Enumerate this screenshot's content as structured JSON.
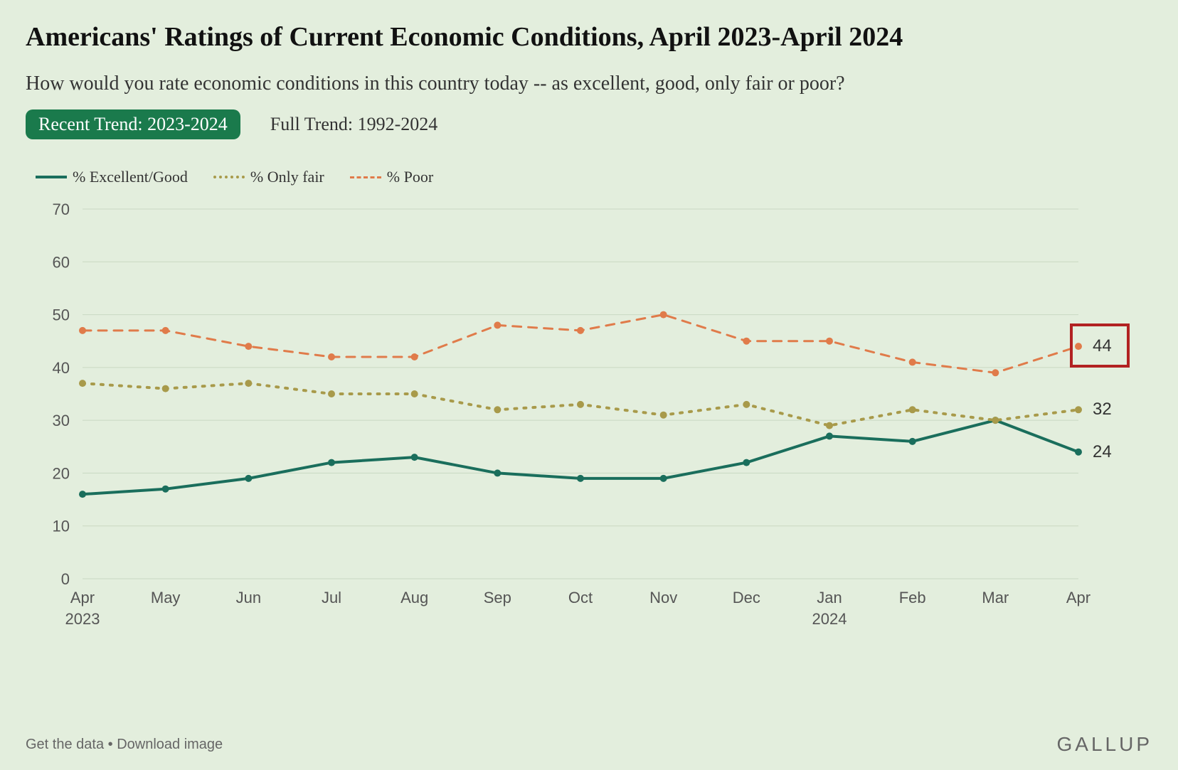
{
  "title": "Americans' Ratings of Current Economic Conditions, April 2023-April 2024",
  "subtitle": "How would you rate economic conditions in this country today -- as excellent, good, only fair or poor?",
  "tabs": {
    "active": "Recent Trend: 2023-2024",
    "inactive": "Full Trend: 1992-2024"
  },
  "legend": [
    {
      "label": "% Excellent/Good",
      "color": "#1a6e5c",
      "style": "solid",
      "width": 4
    },
    {
      "label": "% Only fair",
      "color": "#a89a4a",
      "style": "dotted",
      "width": 4
    },
    {
      "label": "% Poor",
      "color": "#e07b4a",
      "style": "dashed",
      "width": 3
    }
  ],
  "chart": {
    "type": "line",
    "background_color": "#e3eedd",
    "grid_color": "#c9d8c2",
    "ylim": [
      0,
      70
    ],
    "ytick_step": 10,
    "yticks": [
      0,
      10,
      20,
      30,
      40,
      50,
      60,
      70
    ],
    "categories": [
      "Apr",
      "May",
      "Jun",
      "Jul",
      "Aug",
      "Sep",
      "Oct",
      "Nov",
      "Dec",
      "Jan",
      "Feb",
      "Mar",
      "Apr"
    ],
    "year_labels": {
      "0": "2023",
      "9": "2024"
    },
    "series": [
      {
        "name": "excellent_good",
        "color": "#1a6e5c",
        "style": "solid",
        "line_width": 4,
        "marker_radius": 5,
        "values": [
          16,
          17,
          19,
          22,
          23,
          20,
          19,
          19,
          22,
          27,
          26,
          30,
          24
        ],
        "end_label": "24"
      },
      {
        "name": "only_fair",
        "color": "#a89a4a",
        "style": "dotted",
        "line_width": 4,
        "marker_radius": 5,
        "values": [
          37,
          36,
          37,
          35,
          35,
          32,
          33,
          31,
          33,
          29,
          32,
          30,
          32
        ],
        "end_label": "32"
      },
      {
        "name": "poor",
        "color": "#e07b4a",
        "style": "dashed",
        "line_width": 3,
        "marker_radius": 5,
        "values": [
          47,
          47,
          44,
          42,
          42,
          48,
          47,
          50,
          45,
          45,
          41,
          39,
          44
        ],
        "end_label": "44"
      }
    ],
    "highlight": {
      "series": "poor",
      "index": 12,
      "box_color": "#b22222"
    },
    "axis_fontsize": 22,
    "title_fontsize": 38,
    "subtitle_fontsize": 28
  },
  "footer": {
    "get_data": "Get the data",
    "sep": " • ",
    "download": "Download image"
  },
  "brand": "GALLUP"
}
